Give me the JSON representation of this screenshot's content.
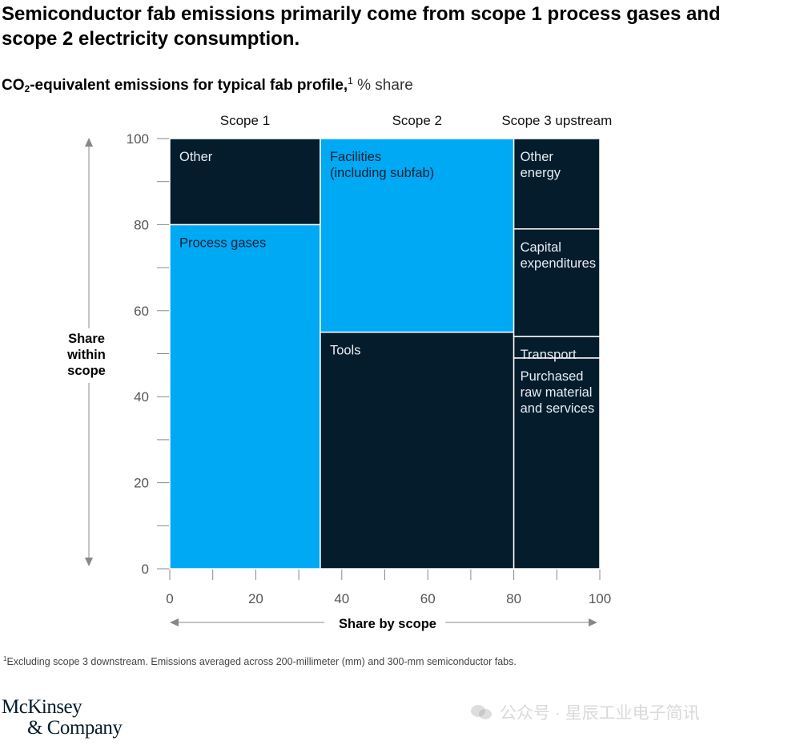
{
  "headline": "Semiconductor fab emissions primarily come from scope 1 process gases and scope 2 electricity consumption.",
  "subtitle": {
    "main_pre": "CO",
    "main_sub": "2",
    "main_post": "-equivalent emissions for typical fab profile,",
    "footnote_mark": "1",
    "unit": " % share"
  },
  "chart_data": {
    "type": "marimekko",
    "y_axis_label": [
      "Share",
      "within",
      "scope"
    ],
    "x_axis_label": "Share by scope",
    "xlim": [
      0,
      100
    ],
    "ylim": [
      0,
      100
    ],
    "x_ticks": [
      0,
      20,
      40,
      60,
      80,
      100
    ],
    "y_ticks": [
      0,
      20,
      40,
      60,
      80,
      100
    ],
    "columns": [
      {
        "name": "Scope 1",
        "width": 35,
        "segments": [
          {
            "label": [
              "Process gases"
            ],
            "value": 80,
            "color": "#00a9f4"
          },
          {
            "label": [
              "Other"
            ],
            "value": 20,
            "color": "#051c2c"
          }
        ]
      },
      {
        "name": "Scope 2",
        "width": 45,
        "segments": [
          {
            "label": [
              "Tools"
            ],
            "value": 55,
            "color": "#051c2c"
          },
          {
            "label": [
              "Facilities",
              "(including subfab)"
            ],
            "value": 45,
            "color": "#00a9f4"
          }
        ]
      },
      {
        "name": "Scope 3 upstream",
        "width": 20,
        "segments": [
          {
            "label": [
              "Purchased",
              "raw material",
              "and services"
            ],
            "value": 49,
            "color": "#051c2c"
          },
          {
            "label": [
              "Transport"
            ],
            "value": 5,
            "color": "#051c2c"
          },
          {
            "label": [
              "Capital",
              "expenditures"
            ],
            "value": 25,
            "color": "#051c2c"
          },
          {
            "label": [
              "Other",
              "energy"
            ],
            "value": 21,
            "color": "#051c2c"
          }
        ]
      }
    ]
  },
  "footnote": {
    "mark": "1",
    "text": "Excluding scope 3 downstream. Emissions averaged across 200-millimeter (mm) and 300-mm semiconductor fabs."
  },
  "logo": {
    "line1": "McKinsey",
    "line2": "& Company"
  },
  "watermark": "公众号 · 星辰工业电子简讯"
}
